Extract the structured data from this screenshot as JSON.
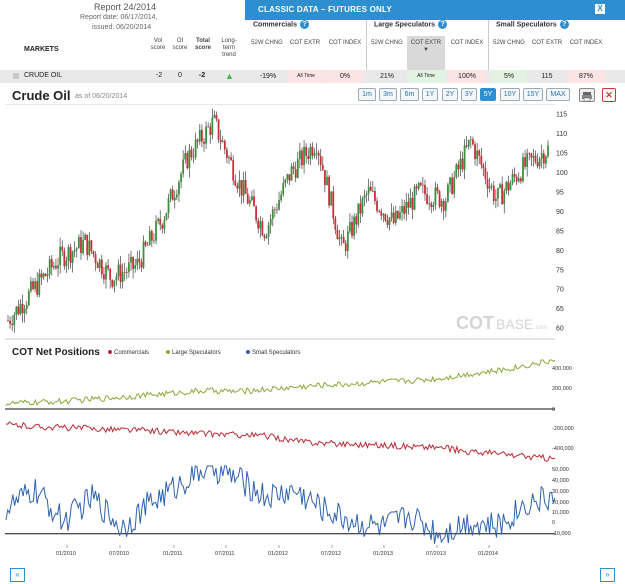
{
  "report": {
    "title": "Report 24/2014",
    "date_line": "Report date: 06/17/2014,",
    "issued_line": "issued: 06/20/2014"
  },
  "header": {
    "classic_title": "CLASSIC DATA – FUTURES ONLY",
    "markets_label": "MARKETS",
    "left_columns": [
      "Vol score",
      "OI score",
      "Total score",
      "Long-term trend"
    ],
    "groups": [
      {
        "name": "Commercials",
        "cols": [
          "52W CHNG",
          "COT EXTR",
          "COT INDEX"
        ]
      },
      {
        "name": "Large Speculators",
        "cols": [
          "52W CHNG",
          "COT EXTR",
          "COT INDEX"
        ]
      },
      {
        "name": "Small Speculators",
        "cols": [
          "52W CHNG",
          "COT EXTR",
          "COT INDEX"
        ]
      }
    ],
    "close_label": "X"
  },
  "row": {
    "market": "CRUDE OIL",
    "vol": "-2",
    "oi": "0",
    "total": "-2",
    "comm": [
      "-19%",
      "All Time",
      "0%"
    ],
    "large": [
      "21%",
      "All Time",
      "100%"
    ],
    "small": [
      "5%",
      "115",
      "87%"
    ]
  },
  "chart": {
    "title": "Crude Oil",
    "asof": "as of 06/20/2014",
    "zoom": [
      "1m",
      "3m",
      "6m",
      "1Y",
      "2Y",
      "3Y",
      "5Y",
      "10Y",
      "15Y",
      "MAX"
    ],
    "active_zoom": "5Y",
    "watermark_cot": "COT",
    "watermark_base": "BASE",
    "watermark_com": ".com"
  },
  "chart_data": [
    {
      "type": "line",
      "title": "Crude Oil",
      "ylim": [
        58,
        116
      ],
      "yticks": [
        115,
        110,
        105,
        100,
        95,
        90,
        85,
        80,
        75,
        70,
        65,
        60
      ],
      "x": [
        "2009-06",
        "2009-09",
        "2009-12",
        "2010-03",
        "2010-06",
        "2010-09",
        "2010-12",
        "2011-03",
        "2011-05",
        "2011-07",
        "2011-10",
        "2011-12",
        "2012-03",
        "2012-06",
        "2012-09",
        "2012-12",
        "2013-03",
        "2013-06",
        "2013-09",
        "2013-12",
        "2014-03",
        "2014-06"
      ],
      "series": [
        {
          "values": [
            62,
            70,
            78,
            82,
            73,
            76,
            88,
            104,
            113,
            97,
            85,
            100,
            108,
            80,
            95,
            87,
            95,
            93,
            108,
            93,
            101,
            106
          ]
        }
      ]
    },
    {
      "type": "line",
      "title": "COT Net Positions",
      "xticks": [
        "01/2010",
        "07/2010",
        "01/2011",
        "07/2011",
        "01/2012",
        "07/2012",
        "01/2013",
        "07/2013",
        "01/2014"
      ],
      "panels": [
        {
          "yticks": [
            "400,000",
            "200,000",
            "0"
          ],
          "ylim": [
            0,
            450000
          ]
        },
        {
          "yticks": [
            "-200,000",
            "-400,000"
          ],
          "ylim": [
            -500000,
            0
          ]
        },
        {
          "yticks": [
            "50,000",
            "40,000",
            "30,000",
            "20,000",
            "10,000",
            "0",
            "-10,000"
          ],
          "ylim": [
            -10000,
            55000
          ]
        }
      ],
      "series": [
        {
          "name": "Commercials",
          "color": "#b92b36",
          "values": [
            -120000,
            -140000,
            -150000,
            -160000,
            -170000,
            -180000,
            -200000,
            -210000,
            -220000,
            -230000,
            -280000,
            -300000,
            -310000,
            -320000,
            -330000,
            -340000,
            -380000,
            -400000,
            -430000,
            -450000
          ]
        },
        {
          "name": "Large Speculators",
          "color": "#8ba83a",
          "values": [
            50000,
            60000,
            70000,
            90000,
            110000,
            130000,
            150000,
            170000,
            160000,
            180000,
            200000,
            220000,
            230000,
            250000,
            260000,
            280000,
            320000,
            350000,
            400000,
            450000
          ]
        },
        {
          "name": "Small Speculators",
          "color": "#2e62b0",
          "values": [
            20000,
            35000,
            10000,
            30000,
            5000,
            25000,
            40000,
            55000,
            45000,
            30000,
            35000,
            20000,
            10000,
            5000,
            15000,
            0,
            10000,
            5000,
            25000,
            30000
          ]
        }
      ]
    }
  ],
  "colors": {
    "accent": "#2d8fd0",
    "up_candle": "#3c8f3c",
    "down_candle": "#c82f3a",
    "commercials": "#b92b36",
    "large_spec": "#8ba83a",
    "small_spec": "#2e62b0"
  }
}
